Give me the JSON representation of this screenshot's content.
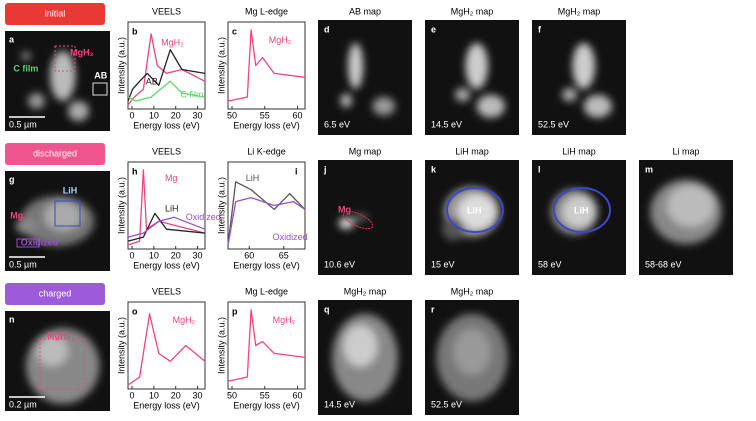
{
  "rows": [
    {
      "state": "initial",
      "image": {
        "letter": "a",
        "labels": [
          "MgH₂",
          "C film",
          "AB"
        ],
        "scale": "0.5 µm"
      },
      "plots": [
        {
          "letter": "b",
          "title": "VEELS",
          "xticks": [
            "0",
            "10",
            "20",
            "30"
          ],
          "xlabel": "Energy loss (eV)",
          "ylabel": "Intensity (a.u.)",
          "labels": [
            "MgH₂",
            "AB",
            "C film"
          ]
        },
        {
          "letter": "c",
          "title": "Mg L-edge",
          "xticks": [
            "50",
            "55",
            "60"
          ],
          "xlabel": "Energy loss (eV)",
          "ylabel": "Intensity (a.u.)",
          "labels": [
            "MgH₂"
          ]
        }
      ],
      "maps": [
        {
          "letter": "d",
          "title": "AB map",
          "energy": "6.5 eV",
          "labels": []
        },
        {
          "letter": "e",
          "title": "MgH₂ map",
          "energy": "14.5 eV",
          "labels": []
        },
        {
          "letter": "f",
          "title": "MgH₂ map",
          "energy": "52.5 eV",
          "labels": []
        }
      ]
    },
    {
      "state": "discharged",
      "image": {
        "letter": "g",
        "labels": [
          "LiH",
          "Mg",
          "Oxidized"
        ],
        "scale": "0.5 µm"
      },
      "plots": [
        {
          "letter": "h",
          "title": "VEELS",
          "xticks": [
            "0",
            "10",
            "20",
            "30"
          ],
          "xlabel": "Energy loss (eV)",
          "ylabel": "Intensity (a.u.)",
          "labels": [
            "Mg",
            "LiH",
            "Oxidized"
          ]
        },
        {
          "letter": "i",
          "title": "Li K-edge",
          "xticks": [
            "60",
            "65"
          ],
          "xlabel": "Energy loss (eV)",
          "ylabel": "Intensity (a.u.)",
          "labels": [
            "LiH",
            "Oxidized"
          ]
        }
      ],
      "maps": [
        {
          "letter": "j",
          "title": "Mg map",
          "energy": "10.6 eV",
          "labels": [
            "Mg"
          ]
        },
        {
          "letter": "k",
          "title": "LiH map",
          "energy": "15 eV",
          "labels": [
            "LiH"
          ]
        },
        {
          "letter": "l",
          "title": "LiH map",
          "energy": "58 eV",
          "labels": [
            "LiH"
          ]
        },
        {
          "letter": "m",
          "title": "Li map",
          "energy": "58-68 eV",
          "labels": []
        }
      ]
    },
    {
      "state": "charged",
      "image": {
        "letter": "n",
        "labels": [
          "MgH₂"
        ],
        "scale": "0.2 µm"
      },
      "plots": [
        {
          "letter": "o",
          "title": "VEELS",
          "xticks": [
            "0",
            "10",
            "20",
            "30"
          ],
          "xlabel": "Energy loss (eV)",
          "ylabel": "Intensity (a.u.)",
          "labels": [
            "MgH₂"
          ]
        },
        {
          "letter": "p",
          "title": "Mg L-edge",
          "xticks": [
            "50",
            "55",
            "60"
          ],
          "xlabel": "Energy loss (eV)",
          "ylabel": "Intensity (a.u.)",
          "labels": [
            "MgH₂"
          ]
        }
      ],
      "maps": [
        {
          "letter": "q",
          "title": "MgH₂ map",
          "energy": "14.5 eV",
          "labels": []
        },
        {
          "letter": "r",
          "title": "MgH₂ map",
          "energy": "52.5 eV",
          "labels": []
        }
      ]
    }
  ]
}
